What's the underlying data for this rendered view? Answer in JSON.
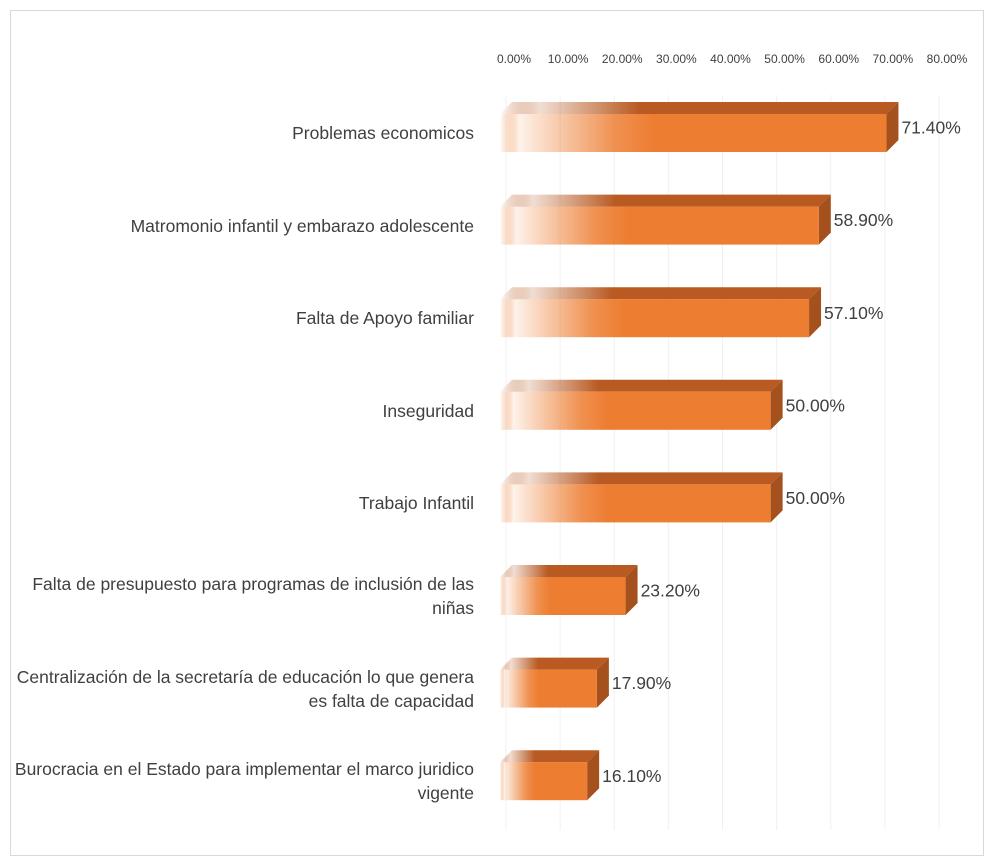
{
  "chart_data": {
    "type": "bar",
    "orientation": "horizontal",
    "categories": [
      "Problemas economicos",
      "Matromonio infantil y embarazo adolescente",
      "Falta de Apoyo familiar",
      "Inseguridad",
      "Trabajo Infantil",
      "Falta de presupuesto para programas de inclusión de las niñas",
      "Centralización de la secretaría de educación lo que genera es falta de capacidad",
      "Burocracia en el Estado para implementar el marco juridico vigente"
    ],
    "values": [
      71.4,
      58.9,
      57.1,
      50.0,
      50.0,
      23.2,
      17.9,
      16.1
    ],
    "value_labels": [
      "71.40%",
      "58.90%",
      "57.10%",
      "50.00%",
      "50.00%",
      "23.20%",
      "17.90%",
      "16.10%"
    ],
    "color": "#ED7D31",
    "xlim": [
      0,
      80
    ],
    "xticks": [
      {
        "value": 0,
        "label": "0.00%"
      },
      {
        "value": 10,
        "label": "10.00%"
      },
      {
        "value": 20,
        "label": "20.00%"
      },
      {
        "value": 30,
        "label": "30.00%"
      },
      {
        "value": 40,
        "label": "40.00%"
      },
      {
        "value": 50,
        "label": "50.00%"
      },
      {
        "value": 60,
        "label": "60.00%"
      },
      {
        "value": 70,
        "label": "70.00%"
      },
      {
        "value": 80,
        "label": "80.00%"
      }
    ],
    "grid": true
  }
}
